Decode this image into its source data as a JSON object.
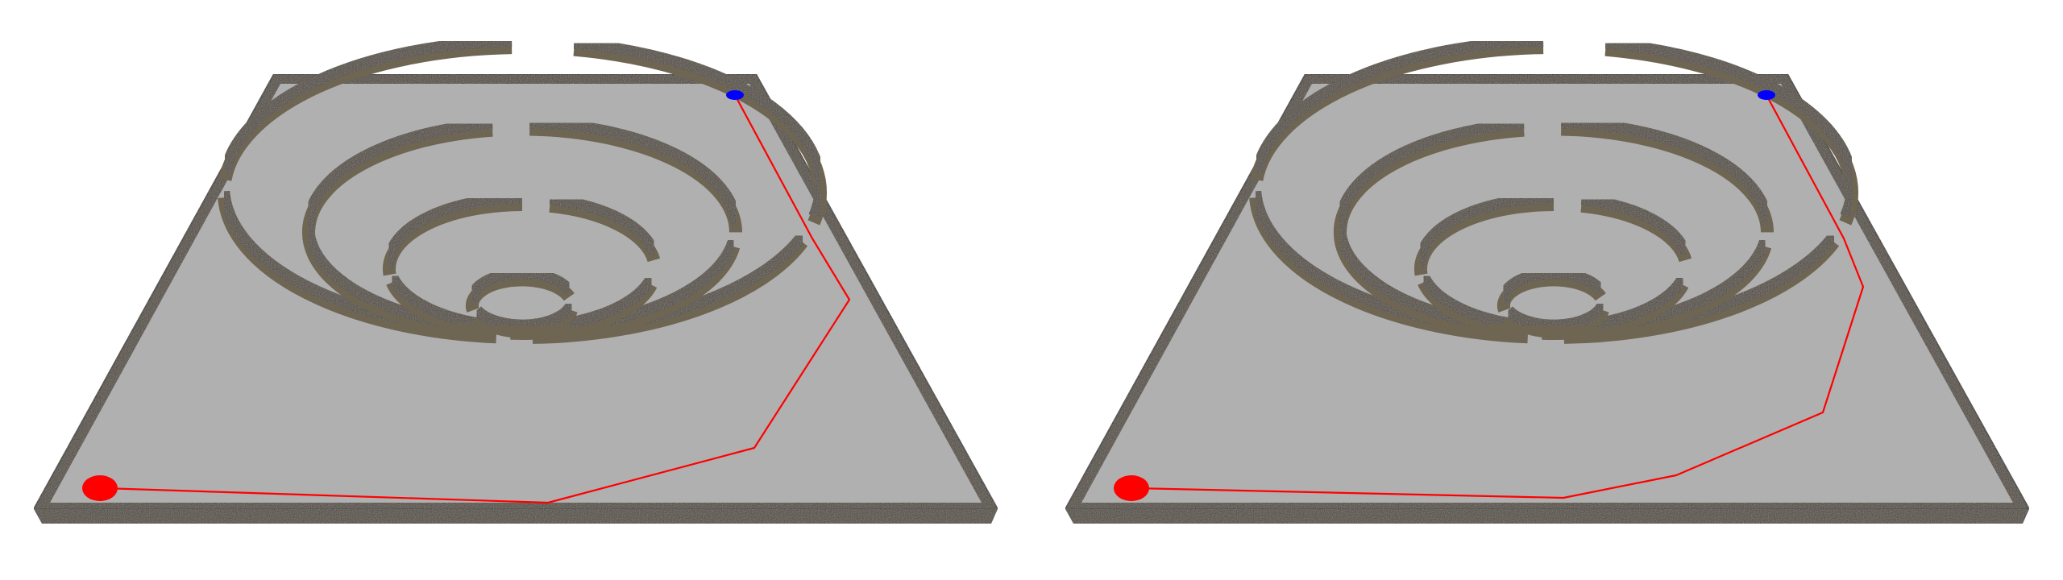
{
  "scene": {
    "view_count": 2,
    "colors": {
      "background": "#ffffff",
      "floor": "#b0b0b0",
      "wall_top": "#4a4133",
      "wall_side": "#6e6553",
      "wall_outline": "#2f2a22",
      "start_marker": "#ff0000",
      "goal_marker": "#0000ff",
      "path": "#ff0000"
    }
  },
  "views": [
    {
      "name": "left-view",
      "path_variant": "a"
    },
    {
      "name": "right-view",
      "path_variant": "b"
    }
  ]
}
